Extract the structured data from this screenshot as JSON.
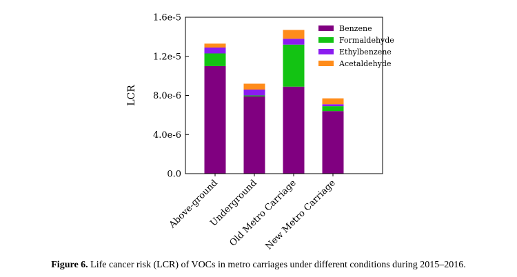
{
  "chart_data": {
    "type": "bar",
    "stacked": true,
    "categories": [
      "Above-ground",
      "Underground",
      "Old Metro Carriage",
      "New Metro Carriage"
    ],
    "series": [
      {
        "name": "Benzene",
        "color": "#800080",
        "values": [
          1.1e-05,
          7.9e-06,
          8.9e-06,
          6.4e-06
        ]
      },
      {
        "name": "Formaldehyde",
        "color": "#13c313",
        "values": [
          1.3e-06,
          1e-07,
          4.3e-06,
          5e-07
        ]
      },
      {
        "name": "Ethylbenzene",
        "color": "#8b1cf0",
        "values": [
          6e-07,
          6e-07,
          6e-07,
          2e-07
        ]
      },
      {
        "name": "Acetaldehyde",
        "color": "#ff8c1a",
        "values": [
          4e-07,
          6e-07,
          9e-07,
          6e-07
        ]
      }
    ],
    "ylabel": "LCR",
    "ylim": [
      0,
      1.6e-05
    ],
    "yticks": [
      0,
      4e-06,
      8e-06,
      1.2e-05,
      1.6e-05
    ],
    "ytick_labels": [
      "0.0",
      "4.0e-6",
      "8.0e-6",
      "1.2e-5",
      "1.6e-5"
    ],
    "legend_position": "top-right",
    "grid": false
  },
  "caption": {
    "label": "Figure 6.",
    "text": "Life cancer risk (LCR) of VOCs in metro carriages under different conditions during 2015–2016."
  }
}
